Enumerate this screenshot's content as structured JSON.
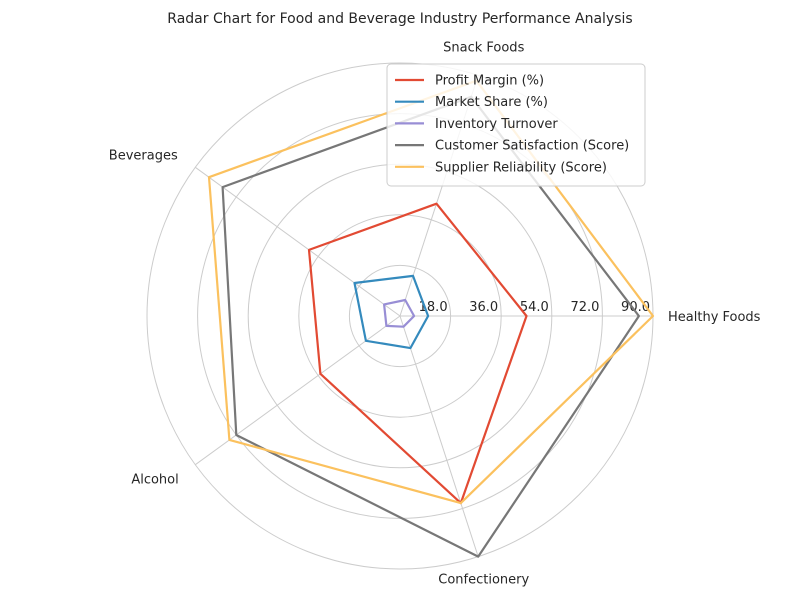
{
  "chart_data": {
    "type": "radar",
    "title": "Radar Chart for Food and Beverage Industry Performance Analysis",
    "categories": [
      "Healthy Foods",
      "Snack Foods",
      "Beverages",
      "Alcohol",
      "Confectionery"
    ],
    "r_ticks": [
      "18.0",
      "36.0",
      "54.0",
      "72.0",
      "90.0"
    ],
    "rlim": [
      0,
      90
    ],
    "grid": true,
    "legend_position": "upper-right",
    "series": [
      {
        "name": "Profit Margin (%)",
        "color": "#E24A33",
        "values": [
          45,
          42,
          40,
          35,
          70
        ]
      },
      {
        "name": "Market Share (%)",
        "color": "#348ABD",
        "values": [
          10,
          15,
          20,
          15,
          12
        ]
      },
      {
        "name": "Inventory Turnover",
        "color": "#988ED5",
        "values": [
          5,
          6,
          7,
          6,
          4
        ]
      },
      {
        "name": "Customer Satisfaction (Score)",
        "color": "#777777",
        "values": [
          85,
          82,
          78,
          72,
          90
        ]
      },
      {
        "name": "Supplier Reliability (Score)",
        "color": "#FBC15E",
        "values": [
          90,
          88,
          84,
          75,
          70
        ]
      }
    ]
  }
}
